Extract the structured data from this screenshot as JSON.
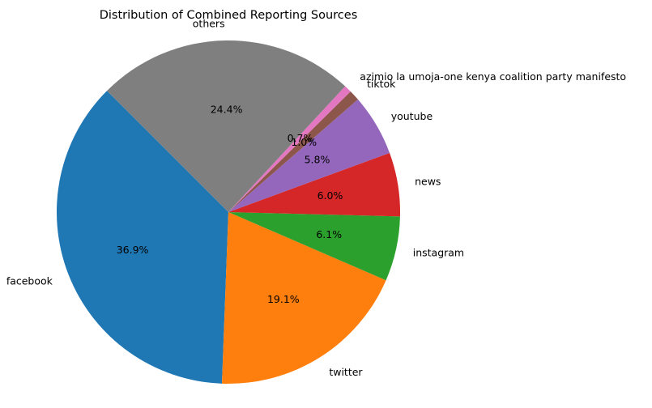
{
  "chart_data": {
    "type": "pie",
    "title": "Distribution of Combined Reporting Sources",
    "start_angle_deg": 135,
    "direction": "counterclockwise",
    "slices": [
      {
        "label": "facebook",
        "value": 36.9,
        "pct_label": "36.9%",
        "color": "#1f77b4"
      },
      {
        "label": "twitter",
        "value": 19.1,
        "pct_label": "19.1%",
        "color": "#ff7f0e"
      },
      {
        "label": "instagram",
        "value": 6.1,
        "pct_label": "6.1%",
        "color": "#2ca02c"
      },
      {
        "label": "news",
        "value": 6.0,
        "pct_label": "6.0%",
        "color": "#d62728"
      },
      {
        "label": "youtube",
        "value": 5.8,
        "pct_label": "5.8%",
        "color": "#9467bd"
      },
      {
        "label": "tiktok",
        "value": 1.0,
        "pct_label": "1.0%",
        "color": "#8c564b"
      },
      {
        "label": "azimio la umoja-one kenya coalition party manifesto",
        "value": 0.7,
        "pct_label": "0.7%",
        "color": "#e377c2"
      },
      {
        "label": "others",
        "value": 24.4,
        "pct_label": "24.4%",
        "color": "#7f7f7f"
      }
    ]
  }
}
